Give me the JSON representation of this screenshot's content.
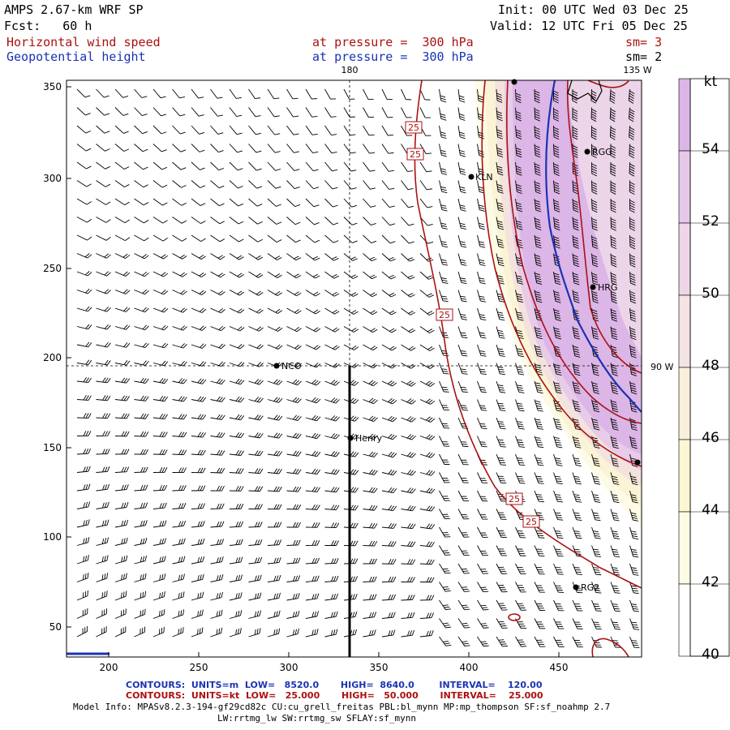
{
  "header": {
    "title": "AMPS 2.67-km WRF SP",
    "forecast": "Fcst:   60 h",
    "init": "Init: 00 UTC Wed 03 Dec 25",
    "valid": "Valid: 12 UTC Fri 05 Dec 25",
    "field1_name": "Horizontal wind speed",
    "field1_level": "at pressure =  300 hPa",
    "field1_sm": "sm= 3",
    "field2_name": "Geopotential height",
    "field2_level": "at pressure =  300 hPa",
    "field2_sm": "sm= 2"
  },
  "map": {
    "lon_labels": [
      "180",
      "135 W",
      "90 W"
    ],
    "x_ticks": [
      "200",
      "250",
      "300",
      "350",
      "400",
      "450"
    ],
    "y_ticks": [
      "350",
      "300",
      "250",
      "200",
      "150",
      "100",
      "50"
    ],
    "stations": [
      "KLN",
      "RGG",
      "HRG",
      "NCO",
      "Henry",
      "RG2"
    ],
    "contour_labels": [
      "25",
      "25",
      "25",
      "25",
      "25"
    ],
    "colors": {
      "wind_contour": "#aa1111",
      "height_contour": "#1a33b3"
    }
  },
  "colorbar": {
    "unit": "kt",
    "labels": [
      "54",
      "52",
      "50",
      "48",
      "46",
      "44",
      "42",
      "40"
    ],
    "colors": [
      "#dcb6e6",
      "#e6c8ea",
      "#eed6e8",
      "#f4e4e4",
      "#f8f0dc",
      "#fbf6d4",
      "#fdfbe4",
      "#ffffff"
    ]
  },
  "footer": {
    "line1": "CONTOURS:  UNITS=m  LOW=   8520.0       HIGH=  8640.0        INTERVAL=    120.00",
    "line2": "CONTOURS:  UNITS=kt  LOW=   25.000       HIGH=   50.000       INTERVAL=    25.000",
    "info1": "Model Info: MPASv8.2.3-194-gf29cd82c CU:cu_grell_freitas PBL:bl_mynn MP:mp_thompson SF:sf_noahmp 2.7",
    "info2": "LW:rrtmg_lw SW:rrtmg_sw SFLAY:sf_mynn"
  }
}
